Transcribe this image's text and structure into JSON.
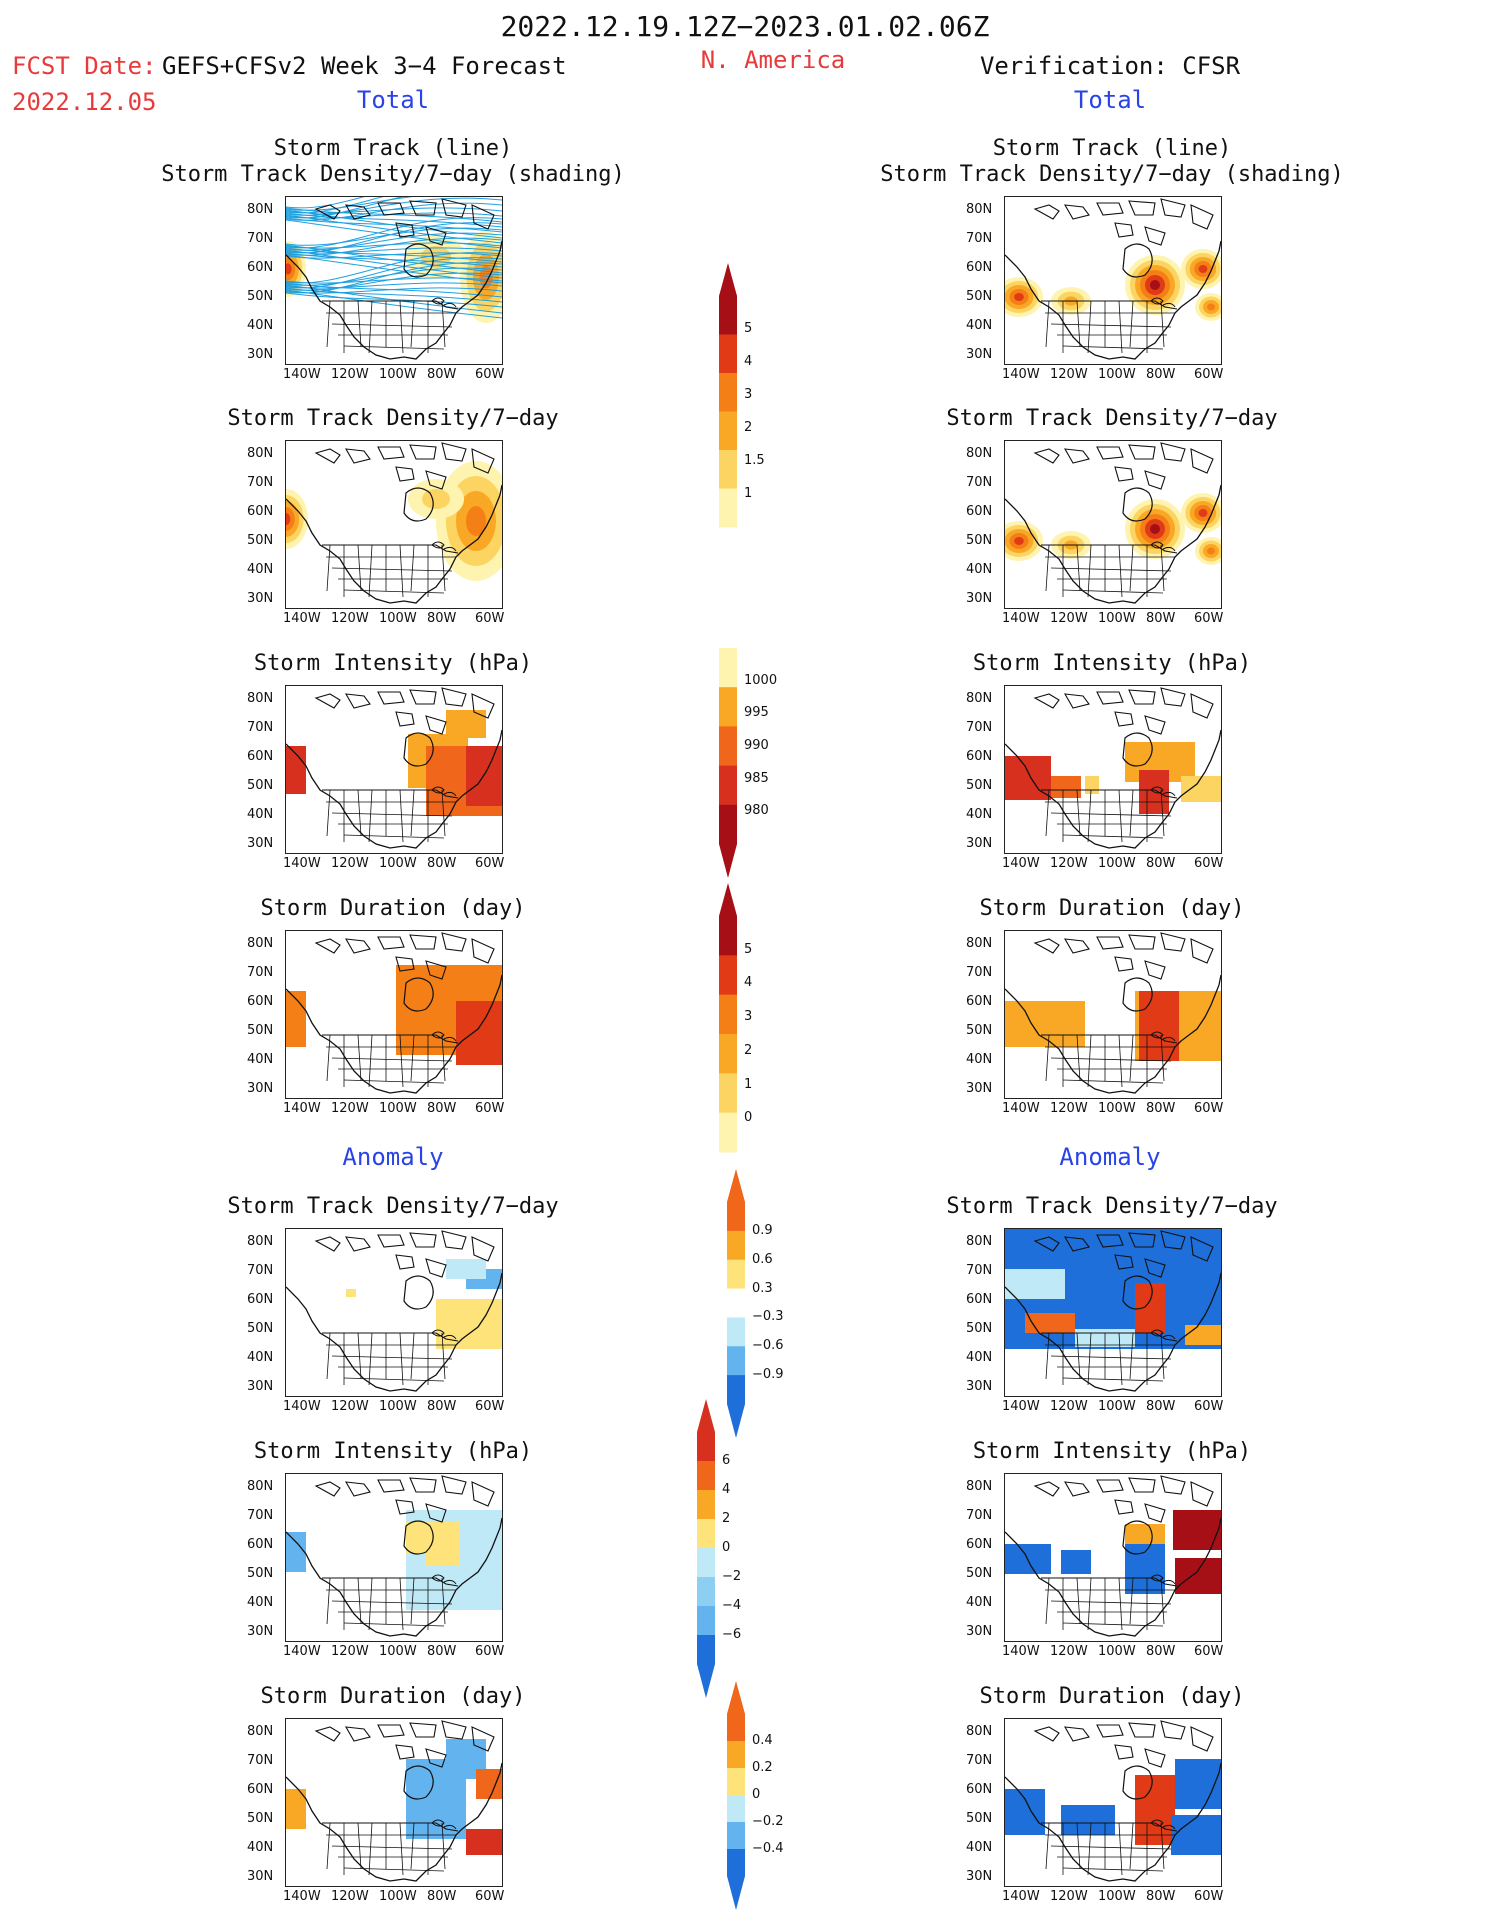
{
  "header": {
    "date_range": "2022.12.19.12Z−2023.01.02.06Z",
    "fcst_label": "FCST Date:",
    "fcst_model": "GEFS+CFSv2 Week 3−4 Forecast",
    "fcst_date": "2022.12.05",
    "region": "N. America",
    "verification": "Verification: CFSR"
  },
  "sections": {
    "total": "Total",
    "anomaly": "Anomaly"
  },
  "panel_titles": {
    "track_line": "Storm Track (line)",
    "track_density_shading": "Storm Track Density/7−day (shading)",
    "track_density": "Storm Track Density/7−day",
    "intensity": "Storm Intensity (hPa)",
    "duration": "Storm Duration (day)"
  },
  "axes": {
    "lat_ticks": [
      "80N",
      "70N",
      "60N",
      "50N",
      "40N",
      "30N"
    ],
    "lon_ticks": [
      "140W",
      "120W",
      "100W",
      "80W",
      "60W"
    ]
  },
  "colorbars": {
    "density_total": {
      "labels": [
        "5",
        "4",
        "3",
        "2",
        "1.5",
        "1"
      ],
      "colors": [
        "#a50f15",
        "#e03a16",
        "#f57f17",
        "#f9a825",
        "#fbd462",
        "#fff3b0"
      ]
    },
    "intensity_total": {
      "labels": [
        "1000",
        "995",
        "990",
        "985",
        "980"
      ],
      "colors": [
        "#fff3b0",
        "#f9a825",
        "#f0661a",
        "#d7301f",
        "#a50f15"
      ]
    },
    "duration_total": {
      "labels": [
        "5",
        "4",
        "3",
        "2",
        "1",
        "0"
      ],
      "colors": [
        "#a50f15",
        "#e03a16",
        "#f57f17",
        "#f9a825",
        "#fbd462",
        "#fff3b0"
      ]
    },
    "density_anom": {
      "labels": [
        "0.9",
        "0.6",
        "0.3",
        "−0.3",
        "−0.6",
        "−0.9"
      ],
      "colors": [
        "#f0661a",
        "#f9a825",
        "#fde37a",
        "#ffffff",
        "#bfe9f7",
        "#63b3ee",
        "#1e6fd9"
      ]
    },
    "intensity_anom": {
      "labels": [
        "6",
        "4",
        "2",
        "0",
        "−2",
        "−4",
        "−6"
      ],
      "colors": [
        "#d7301f",
        "#f0661a",
        "#f9a825",
        "#fde37a",
        "#bfe9f7",
        "#8ccff2",
        "#63b3ee",
        "#1e6fd9"
      ]
    },
    "duration_anom": {
      "labels": [
        "0.4",
        "0.2",
        "0",
        "−0.2",
        "−0.4"
      ],
      "colors": [
        "#f0661a",
        "#f9a825",
        "#fde37a",
        "#bfe9f7",
        "#63b3ee",
        "#1e6fd9"
      ]
    }
  }
}
